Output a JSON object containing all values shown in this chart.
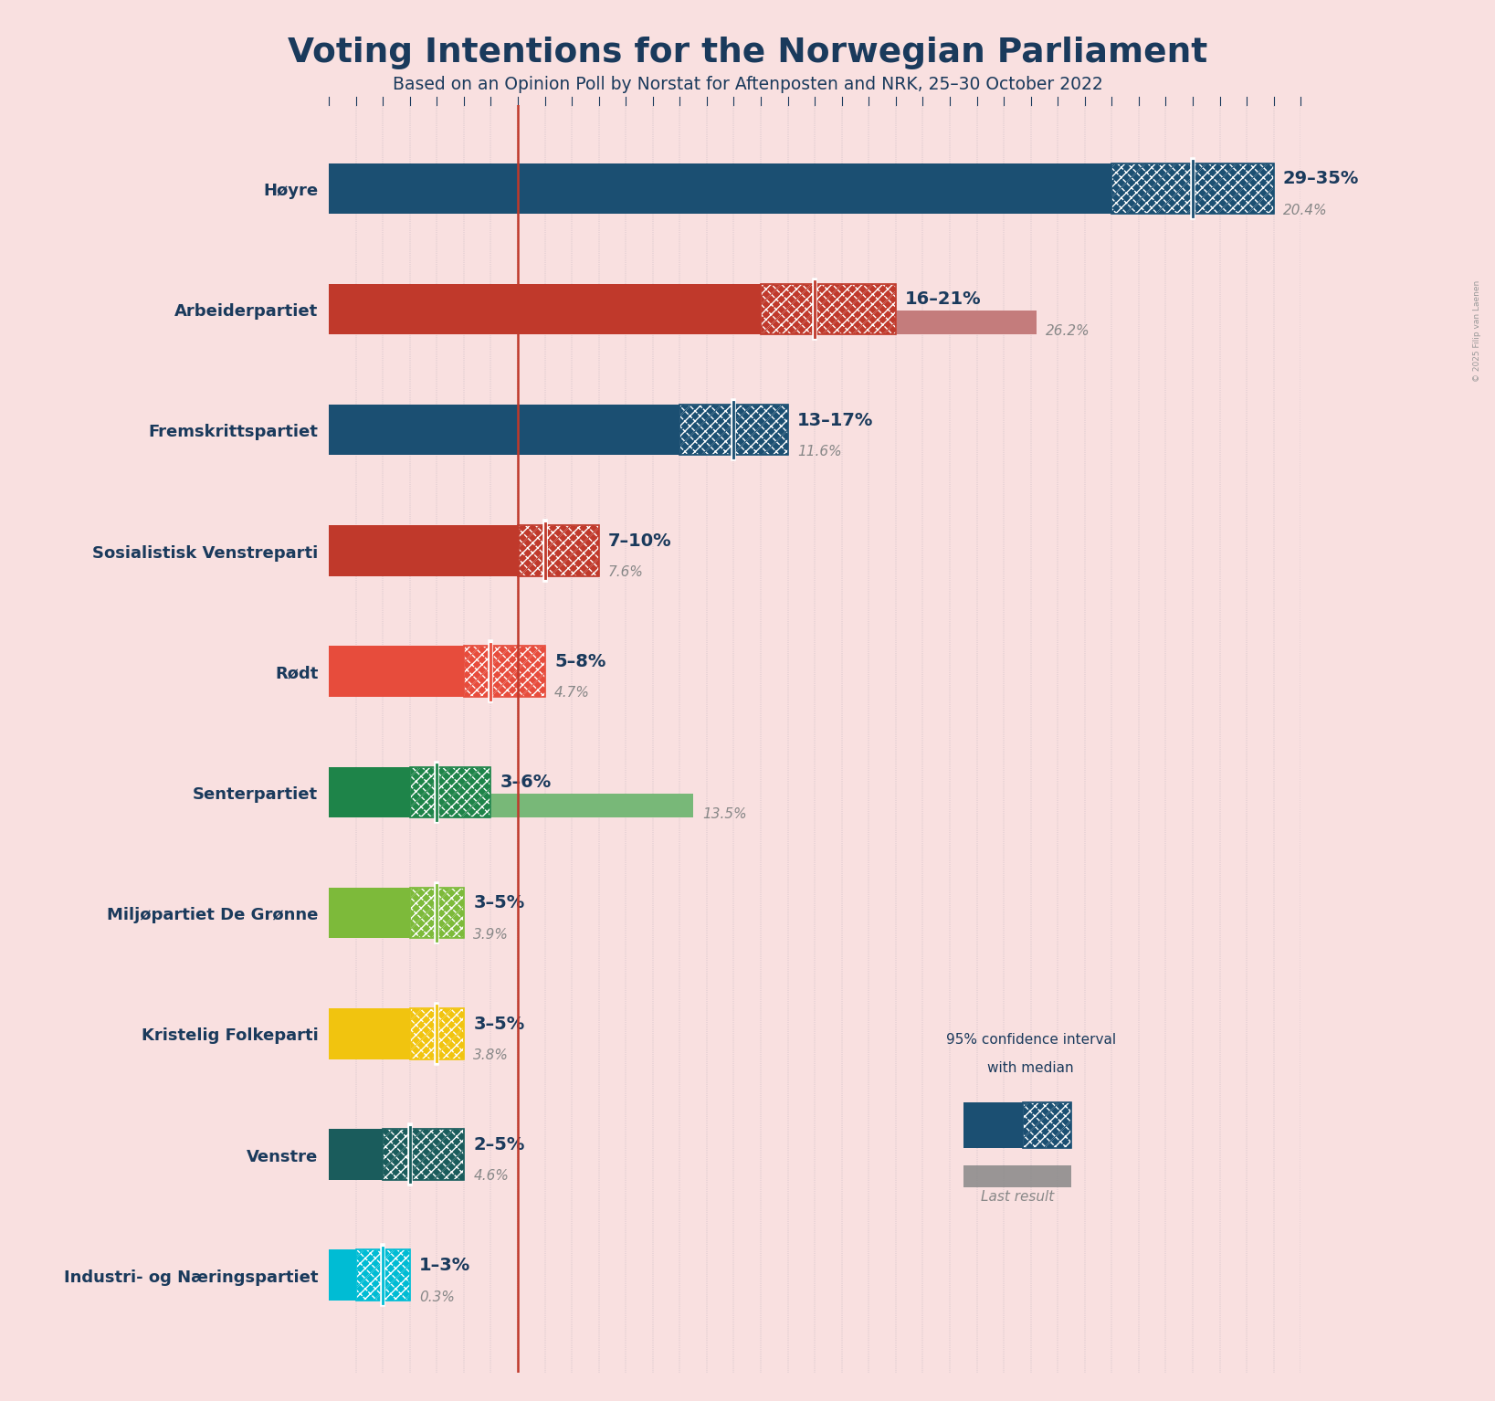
{
  "title": "Voting Intentions for the Norwegian Parliament",
  "subtitle": "Based on an Opinion Poll by Norstat for Aftenposten and NRK, 25–30 October 2022",
  "copyright": "© 2025 Filip van Laenen",
  "bg": "#f9e0e0",
  "parties": [
    {
      "name": "Høyre",
      "ci_low": 29,
      "ci_high": 35,
      "median": 32,
      "last": 20.4,
      "color": "#1b4f72",
      "last_color": "#8aafc2",
      "label": "29–35%",
      "last_label": "20.4%"
    },
    {
      "name": "Arbeiderpartiet",
      "ci_low": 16,
      "ci_high": 21,
      "median": 18,
      "last": 26.2,
      "color": "#c0392b",
      "last_color": "#c47c7c",
      "label": "16–21%",
      "last_label": "26.2%"
    },
    {
      "name": "Fremskrittspartiet",
      "ci_low": 13,
      "ci_high": 17,
      "median": 15,
      "last": 11.6,
      "color": "#1b4f72",
      "last_color": "#8aafc2",
      "label": "13–17%",
      "last_label": "11.6%"
    },
    {
      "name": "Sosialistisk Venstreparti",
      "ci_low": 7,
      "ci_high": 10,
      "median": 8,
      "last": 7.6,
      "color": "#c0392b",
      "last_color": "#c47c7c",
      "label": "7–10%",
      "last_label": "7.6%"
    },
    {
      "name": "Rødt",
      "ci_low": 5,
      "ci_high": 8,
      "median": 6,
      "last": 4.7,
      "color": "#e74c3c",
      "last_color": "#d08888",
      "label": "5–8%",
      "last_label": "4.7%"
    },
    {
      "name": "Senterpartiet",
      "ci_low": 3,
      "ci_high": 6,
      "median": 4,
      "last": 13.5,
      "color": "#1e8449",
      "last_color": "#78b878",
      "label": "3–6%",
      "last_label": "13.5%"
    },
    {
      "name": "Miljøpartiet De Grønne",
      "ci_low": 3,
      "ci_high": 5,
      "median": 4,
      "last": 3.9,
      "color": "#7dba3a",
      "last_color": "#aac87a",
      "label": "3–5%",
      "last_label": "3.9%"
    },
    {
      "name": "Kristelig Folkeparti",
      "ci_low": 3,
      "ci_high": 5,
      "median": 4,
      "last": 3.8,
      "color": "#f1c40f",
      "last_color": "#d8cc80",
      "label": "3–5%",
      "last_label": "3.8%"
    },
    {
      "name": "Venstre",
      "ci_low": 2,
      "ci_high": 5,
      "median": 3,
      "last": 4.6,
      "color": "#1a5c5c",
      "last_color": "#808888",
      "label": "2–5%",
      "last_label": "4.6%"
    },
    {
      "name": "Industri- og Næringspartiet",
      "ci_low": 1,
      "ci_high": 3,
      "median": 2,
      "last": 0.3,
      "color": "#00bcd4",
      "last_color": "#70c8c8",
      "label": "1–3%",
      "last_label": "0.3%"
    }
  ],
  "xmax": 36,
  "red_line_x": 7.0,
  "title_color": "#1a3a5c",
  "label_color": "#1a3a5c",
  "last_label_color": "#888888",
  "bar_height": 0.42,
  "last_bar_height": 0.2
}
